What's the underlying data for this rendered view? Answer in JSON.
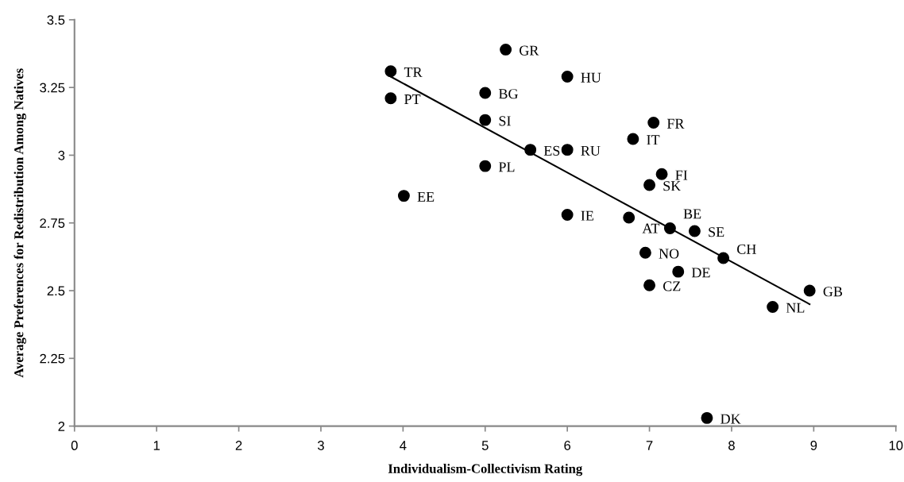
{
  "chart_data": {
    "type": "scatter",
    "xlabel": "Individualism-Collectivism Rating",
    "ylabel": "Average Preferences for Redistribution Among Natives",
    "xlim": [
      0,
      10
    ],
    "xticks": [
      0,
      1,
      2,
      3,
      4,
      5,
      6,
      7,
      8,
      9,
      10
    ],
    "ylim": [
      2,
      3.5
    ],
    "yticks": [
      2,
      2.25,
      2.5,
      2.75,
      3,
      3.25,
      3.5
    ],
    "grid": false,
    "series": [
      {
        "marker": "circle",
        "color": "#000000",
        "x": [
          3.85,
          3.85,
          4.01,
          5.25,
          6.0,
          5.0,
          5.0,
          7.05,
          6.8,
          5.55,
          6.0,
          5.0,
          7.15,
          7.0,
          6.0,
          6.75,
          7.25,
          7.55,
          6.95,
          7.9,
          7.35,
          7.0,
          8.95,
          8.5,
          7.7
        ],
        "values": [
          3.31,
          3.21,
          2.85,
          3.39,
          3.29,
          3.23,
          3.13,
          3.12,
          3.06,
          3.02,
          3.02,
          2.96,
          2.93,
          2.89,
          2.78,
          2.77,
          2.73,
          2.72,
          2.64,
          2.62,
          2.57,
          2.52,
          2.5,
          2.44,
          2.03
        ]
      },
      {
        "type": "line",
        "marker": "none",
        "color": "#000000",
        "x": [
          3.85,
          8.95
        ],
        "values": [
          3.29,
          2.45
        ]
      }
    ],
    "annotations": [
      {
        "text": "TR",
        "x": 3.85,
        "y": 3.31
      },
      {
        "text": "PT",
        "x": 3.85,
        "y": 3.21
      },
      {
        "text": "EE",
        "x": 4.01,
        "y": 2.85
      },
      {
        "text": "GR",
        "x": 5.25,
        "y": 3.39
      },
      {
        "text": "HU",
        "x": 6.0,
        "y": 3.29
      },
      {
        "text": "BG",
        "x": 5.0,
        "y": 3.23
      },
      {
        "text": "SI",
        "x": 5.0,
        "y": 3.13
      },
      {
        "text": "FR",
        "x": 7.05,
        "y": 3.12
      },
      {
        "text": "IT",
        "x": 6.8,
        "y": 3.06
      },
      {
        "text": "ES",
        "x": 5.55,
        "y": 3.02
      },
      {
        "text": "RU",
        "x": 6.0,
        "y": 3.02
      },
      {
        "text": "PL",
        "x": 5.0,
        "y": 2.96
      },
      {
        "text": "FI",
        "x": 7.15,
        "y": 2.93
      },
      {
        "text": "SK",
        "x": 7.0,
        "y": 2.89
      },
      {
        "text": "IE",
        "x": 6.0,
        "y": 2.78
      },
      {
        "text": "AT",
        "x": 6.75,
        "y": 2.77
      },
      {
        "text": "BE",
        "x": 7.25,
        "y": 2.73
      },
      {
        "text": "SE",
        "x": 7.55,
        "y": 2.72
      },
      {
        "text": "NO",
        "x": 6.95,
        "y": 2.64
      },
      {
        "text": "CH",
        "x": 7.9,
        "y": 2.62
      },
      {
        "text": "DE",
        "x": 7.35,
        "y": 2.57
      },
      {
        "text": "CZ",
        "x": 7.0,
        "y": 2.52
      },
      {
        "text": "GB",
        "x": 8.95,
        "y": 2.5
      },
      {
        "text": "NL",
        "x": 8.5,
        "y": 2.44
      },
      {
        "text": "DK",
        "x": 7.7,
        "y": 2.03
      }
    ]
  }
}
